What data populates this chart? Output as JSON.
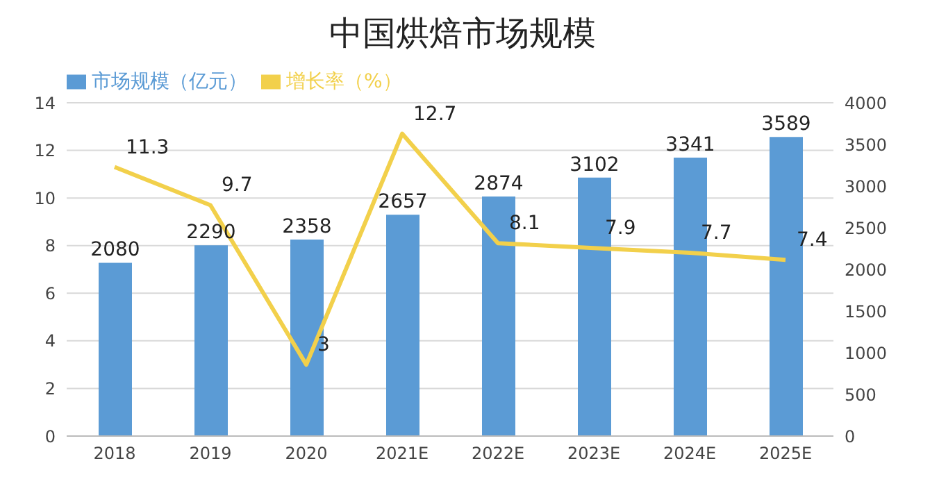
{
  "chart_data": {
    "type": "bar",
    "title": "中国烘焙市场规模",
    "categories": [
      "2018",
      "2019",
      "2020",
      "2021E",
      "2022E",
      "2023E",
      "2024E",
      "2025E"
    ],
    "series": [
      {
        "name": "市场规模（亿元）",
        "axis": "y2",
        "color": "#5b9bd5",
        "values": [
          2080,
          2290,
          2358,
          2657,
          2874,
          3102,
          3341,
          3589
        ]
      },
      {
        "name": "增长率（%）",
        "type": "line",
        "axis": "y",
        "color": "#f2d04b",
        "values": [
          11.3,
          9.7,
          3,
          12.7,
          8.1,
          7.9,
          7.7,
          7.4
        ]
      }
    ],
    "ylim": [
      0,
      14
    ],
    "yticks": [
      0,
      2,
      4,
      6,
      8,
      10,
      12,
      14
    ],
    "y2lim": [
      0,
      4000
    ],
    "y2ticks": [
      0,
      500,
      1000,
      1500,
      2000,
      2500,
      3000,
      3500,
      4000
    ],
    "grid": "y",
    "legend": "top left",
    "data_labels": true,
    "marker": "none"
  }
}
